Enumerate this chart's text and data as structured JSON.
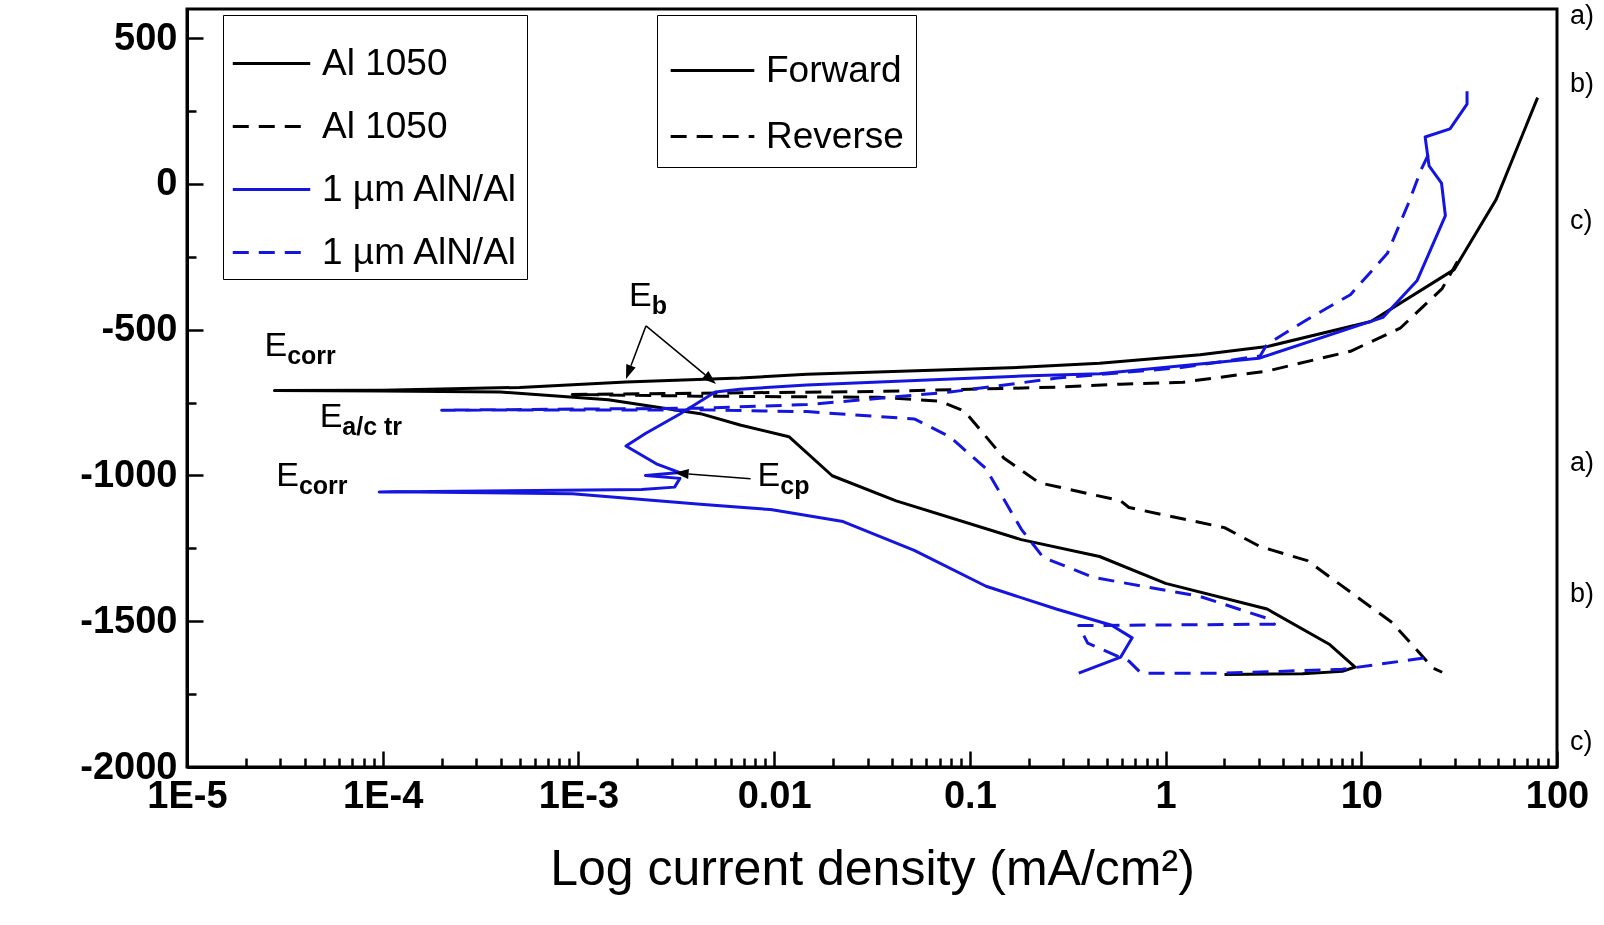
{
  "chart_data": {
    "type": "line",
    "xlabel": "Log current density (mA/cm²)",
    "log": "x",
    "legend": "top left",
    "marker": "none",
    "grid": false,
    "xlim": [
      1e-05,
      100
    ],
    "ylim": [
      -2000,
      600
    ],
    "xticks": [
      {
        "value": 1e-05,
        "label": "1E-5"
      },
      {
        "value": 2e-05,
        "label": null
      },
      {
        "value": 3e-05,
        "label": null
      },
      {
        "value": 4e-05,
        "label": null
      },
      {
        "value": 5e-05,
        "label": null
      },
      {
        "value": 6e-05,
        "label": null
      },
      {
        "value": 7e-05,
        "label": null
      },
      {
        "value": 8e-05,
        "label": null
      },
      {
        "value": 9e-05,
        "label": null
      },
      {
        "value": 0.0001,
        "label": "1E-4"
      },
      {
        "value": 0.0002,
        "label": null
      },
      {
        "value": 0.0003,
        "label": null
      },
      {
        "value": 0.0004,
        "label": null
      },
      {
        "value": 0.0005,
        "label": null
      },
      {
        "value": 0.0006,
        "label": null
      },
      {
        "value": 0.0007,
        "label": null
      },
      {
        "value": 0.0008,
        "label": null
      },
      {
        "value": 0.0009,
        "label": null
      },
      {
        "value": 0.001,
        "label": "1E-3"
      },
      {
        "value": 0.002,
        "label": null
      },
      {
        "value": 0.003,
        "label": null
      },
      {
        "value": 0.004,
        "label": null
      },
      {
        "value": 0.005,
        "label": null
      },
      {
        "value": 0.006,
        "label": null
      },
      {
        "value": 0.007,
        "label": null
      },
      {
        "value": 0.008,
        "label": null
      },
      {
        "value": 0.009,
        "label": null
      },
      0.01,
      {
        "value": 0.02,
        "label": null
      },
      {
        "value": 0.03,
        "label": null
      },
      {
        "value": 0.04,
        "label": null
      },
      {
        "value": 0.05,
        "label": null
      },
      {
        "value": 0.06,
        "label": null
      },
      {
        "value": 0.07,
        "label": null
      },
      {
        "value": 0.08,
        "label": null
      },
      {
        "value": 0.09,
        "label": null
      },
      0.1,
      {
        "value": 0.2,
        "label": null
      },
      {
        "value": 0.3,
        "label": null
      },
      {
        "value": 0.4,
        "label": null
      },
      {
        "value": 0.5,
        "label": null
      },
      {
        "value": 0.6,
        "label": null
      },
      {
        "value": 0.7,
        "label": null
      },
      {
        "value": 0.8,
        "label": null
      },
      {
        "value": 0.9,
        "label": null
      },
      1,
      {
        "value": 2,
        "label": null
      },
      {
        "value": 3,
        "label": null
      },
      {
        "value": 4,
        "label": null
      },
      {
        "value": 5,
        "label": null
      },
      {
        "value": 6,
        "label": null
      },
      {
        "value": 7,
        "label": null
      },
      {
        "value": 8,
        "label": null
      },
      {
        "value": 9,
        "label": null
      },
      10,
      {
        "value": 20,
        "label": null
      },
      {
        "value": 30,
        "label": null
      },
      {
        "value": 40,
        "label": null
      },
      {
        "value": 50,
        "label": null
      },
      {
        "value": 60,
        "label": null
      },
      {
        "value": 70,
        "label": null
      },
      {
        "value": 80,
        "label": null
      },
      {
        "value": 90,
        "label": null
      },
      100
    ],
    "yticks": [
      -2000,
      {
        "value": -1750,
        "label": null
      },
      -1500,
      {
        "value": -1250,
        "label": null
      },
      -1000,
      {
        "value": -750,
        "label": null
      },
      -500,
      {
        "value": -250,
        "label": null
      },
      0,
      {
        "value": 250,
        "label": null
      },
      500
    ],
    "series": [
      {
        "name": "Al 1050",
        "color": "#000000",
        "line_style": "solid",
        "x": [
          2.0,
          5.0,
          8.0,
          9.3,
          6.9,
          3.3,
          1.0,
          0.46,
          0.183,
          0.042,
          0.0198,
          0.0119,
          0.0067,
          0.0042,
          0.00142,
          0.0004,
          0.0001,
          2.8e-05,
          0.0001,
          0.0005,
          0.00175,
          0.0067,
          0.0147,
          0.183,
          0.46,
          1.5,
          3.3,
          11.2,
          29.8,
          48.9,
          79.6
        ],
        "values": [
          -1683,
          -1680,
          -1672,
          -1657,
          -1580,
          -1458,
          -1370,
          -1278,
          -1220,
          -1087,
          -1001,
          -867,
          -827,
          -788,
          -740,
          -714,
          -710,
          -709,
          -708,
          -698,
          -679,
          -666,
          -653,
          -629,
          -615,
          -586,
          -558,
          -472,
          -294,
          -53,
          296
        ]
      },
      {
        "name": "Al 1050",
        "color": "#000000",
        "line_style": "dashed",
        "x": [
          31,
          25.9,
          15.8,
          8.8,
          3.3,
          1.23,
          0.59,
          0.28,
          0.034,
          0.0042,
          0.00093,
          0.0042,
          0.034,
          0.07,
          0.094,
          0.111,
          0.149,
          0.226,
          0.59,
          0.65,
          2.0,
          3.04,
          5.3,
          14.4,
          23.3,
          25.9
        ],
        "values": [
          -266,
          -359,
          -495,
          -574,
          -642,
          -680,
          -687,
          -697,
          -712,
          -718,
          -722,
          -728,
          -732,
          -745,
          -780,
          -837,
          -940,
          -1025,
          -1087,
          -1110,
          -1179,
          -1244,
          -1292,
          -1505,
          -1661,
          -1675
        ]
      },
      {
        "name": "1 µm AlN/Al",
        "color": "#1515e0",
        "line_style": "solid",
        "x": [
          0.36,
          0.59,
          0.675,
          0.53,
          0.279,
          0.121,
          0.052,
          0.0225,
          0.0096,
          0.0042,
          0.00093,
          0.000115,
          9.6e-05,
          0.0021,
          0.0031,
          0.0033,
          0.0022,
          0.0033,
          0.0025,
          0.00175,
          0.0022,
          0.0033,
          0.005,
          0.0067,
          0.0147,
          0.183,
          0.46,
          3.0,
          12.9,
          19.3,
          26.9,
          25.7,
          22.2,
          21.2,
          28.4,
          34.7,
          34.7
        ],
        "values": [
          -1678,
          -1623,
          -1557,
          -1514,
          -1459,
          -1380,
          -1257,
          -1158,
          -1117,
          -1099,
          -1063,
          -1056,
          -1057,
          -1048,
          -1040,
          -1010,
          -1000,
          -990,
          -960,
          -899,
          -856,
          -789,
          -714,
          -704,
          -690,
          -659,
          -651,
          -598,
          -458,
          -331,
          -109,
          3,
          62,
          161,
          189,
          274,
          318
        ]
      },
      {
        "name": "1 µm AlN/Al",
        "color": "#1515e0",
        "line_style": "dashed",
        "x": [
          22,
          20.2,
          17.4,
          13.6,
          8.8,
          5.3,
          3.3,
          3.04,
          1.2,
          0.28,
          0.079,
          0.0147,
          0.0042,
          0.0002,
          0.0042,
          0.0147,
          0.052,
          0.079,
          0.121,
          0.183,
          0.237,
          0.43,
          1.5,
          3.3,
          3.6,
          0.36,
          0.4,
          0.65,
          0.75,
          2.0,
          8.0,
          21
        ],
        "values": [
          100,
          48,
          -67,
          -238,
          -380,
          -465,
          -550,
          -590,
          -630,
          -666,
          -714,
          -757,
          -769,
          -776,
          -775,
          -781,
          -806,
          -867,
          -977,
          -1184,
          -1281,
          -1350,
          -1415,
          -1490,
          -1510,
          -1515,
          -1575,
          -1637,
          -1678,
          -1678,
          -1665,
          -1626
        ]
      }
    ],
    "annotations": [
      "Forward",
      "Reverse",
      {
        "text": "E$_{corr}$",
        "x": 2.8e-05,
        "y": -709
      },
      {
        "text": "E$_{b}$",
        "x": 0.00175,
        "y": -679
      },
      {
        "text": "E$_{a/c tr}$",
        "x": 0.0002,
        "y": -776
      },
      {
        "text": "E$_{corr}$",
        "x": 9.6e-05,
        "y": -1057
      },
      {
        "text": "E$_{cp}$",
        "x": 0.0031,
        "y": -991
      },
      "a)",
      "b)",
      "c)",
      "a)",
      "b)",
      "c)"
    ]
  }
}
